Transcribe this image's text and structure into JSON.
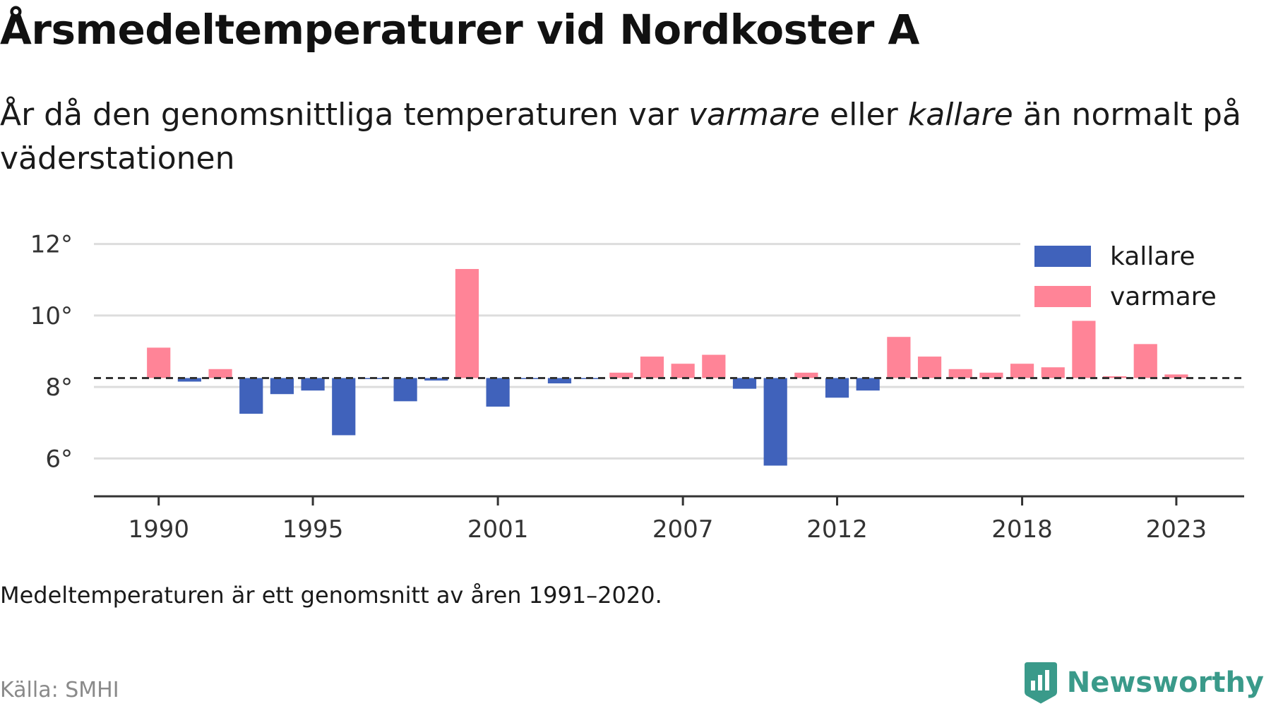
{
  "title": "Årsmedeltemperaturer vid Nordkoster A",
  "subtitle": {
    "part1": "År då den genomsnittliga temperaturen var ",
    "warm_word": "varmare",
    "part2": " eller ",
    "cold_word": "kallare",
    "part3": " än normalt på väderstationen"
  },
  "note": "Medeltemperaturen är ett genomsnitt av åren 1991–2020.",
  "source": "Källa: SMHI",
  "brand": {
    "name": "Newsworthy",
    "icon": "newsworthy-logo-icon"
  },
  "colors": {
    "kallare": "#4062bb",
    "varmare": "#ff8497",
    "grid": "#dddddd",
    "axis": "#333333",
    "brand": "#3a9a8a"
  },
  "chart_data": {
    "type": "bar",
    "x": [
      1990,
      1991,
      1992,
      1993,
      1994,
      1995,
      1996,
      1997,
      1998,
      1999,
      2000,
      2001,
      2002,
      2003,
      2004,
      2005,
      2006,
      2007,
      2008,
      2009,
      2010,
      2011,
      2012,
      2013,
      2014,
      2015,
      2016,
      2017,
      2018,
      2019,
      2020,
      2021,
      2022,
      2023
    ],
    "values": [
      9.1,
      8.15,
      8.5,
      7.25,
      7.8,
      7.9,
      6.65,
      8.22,
      7.6,
      8.18,
      11.3,
      7.45,
      8.22,
      8.1,
      8.22,
      8.4,
      8.85,
      8.65,
      8.9,
      7.95,
      5.8,
      8.4,
      7.7,
      7.9,
      9.4,
      8.85,
      8.5,
      8.4,
      8.65,
      8.55,
      9.85,
      8.3,
      9.2,
      8.35
    ],
    "baseline": 8.25,
    "ylim": [
      5.0,
      12.9
    ],
    "yticks": [
      6,
      8,
      10,
      12
    ],
    "ytick_labels": [
      "6°",
      "8°",
      "10°",
      "12°"
    ],
    "xticks": [
      1990,
      1995,
      2001,
      2007,
      2012,
      2018,
      2023
    ],
    "xtick_labels": [
      "1990",
      "1995",
      "2001",
      "2007",
      "2012",
      "2018",
      "2023"
    ],
    "xlim": [
      1987.9,
      2025.2
    ],
    "legend": {
      "placement": "top-right",
      "entries": [
        {
          "name": "kallare",
          "color": "#4062bb"
        },
        {
          "name": "varmare",
          "color": "#ff8497"
        }
      ]
    },
    "grid": true
  }
}
